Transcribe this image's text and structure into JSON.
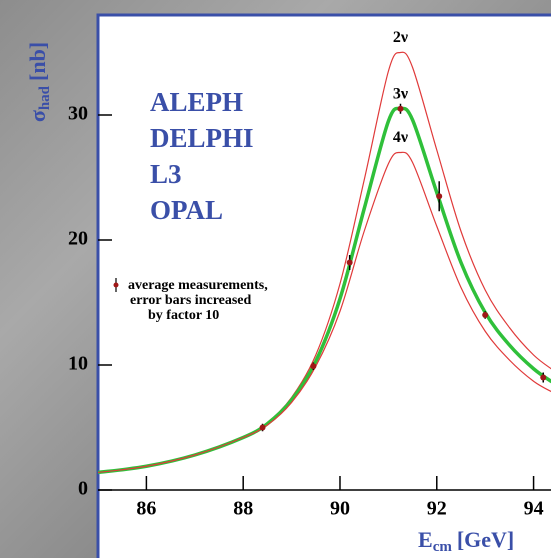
{
  "chart_data": {
    "type": "line",
    "x": [
      85,
      86,
      87,
      88,
      88.5,
      89,
      89.5,
      90,
      90.5,
      91,
      91.25,
      91.5,
      92,
      92.5,
      93,
      93.5,
      94,
      94.4
    ],
    "series": [
      {
        "name": "2ν",
        "color": "#e03a3a",
        "width": 1.2,
        "values": [
          1.4,
          1.9,
          2.8,
          4.2,
          5.4,
          7.4,
          10.8,
          16.5,
          24.8,
          33.5,
          35.0,
          33.8,
          27.2,
          20.7,
          16.0,
          13.0,
          10.8,
          9.6
        ]
      },
      {
        "name": "3ν",
        "color": "#2fc03a",
        "width": 3.5,
        "values": [
          1.4,
          1.9,
          2.8,
          4.2,
          5.3,
          7.2,
          10.3,
          15.3,
          22.5,
          29.5,
          30.5,
          29.6,
          23.8,
          18.2,
          14.2,
          11.6,
          9.7,
          8.6
        ]
      },
      {
        "name": "4ν",
        "color": "#e03a3a",
        "width": 1.2,
        "values": [
          1.4,
          1.9,
          2.8,
          4.2,
          5.2,
          7.0,
          9.9,
          14.3,
          20.7,
          26.1,
          27.0,
          26.2,
          21.1,
          16.2,
          12.7,
          10.4,
          8.7,
          7.8
        ]
      }
    ],
    "measurements": {
      "x": [
        88.4,
        89.45,
        90.2,
        91.25,
        92.05,
        93.0,
        94.2
      ],
      "values": [
        5.0,
        9.9,
        18.2,
        30.5,
        23.5,
        14.0,
        9.0
      ],
      "errors": [
        0.3,
        0.3,
        0.6,
        0.4,
        1.2,
        0.3,
        0.4
      ],
      "color": "#a01818"
    },
    "experiments": [
      "ALEPH",
      "DELPHI",
      "L3",
      "OPAL"
    ],
    "legend_text": [
      "average measurements,",
      "error bars increased",
      "by factor 10"
    ],
    "xlabel": {
      "main": "E",
      "sub": "cm",
      "unit": "[GeV]"
    },
    "ylabel": {
      "main": "σ",
      "sub": "had",
      "unit": "[nb]"
    },
    "xlim": [
      85,
      94.36
    ],
    "ylim": [
      0,
      38
    ],
    "xticks": [
      86,
      88,
      90,
      92,
      94
    ],
    "yticks": [
      0,
      10,
      20,
      30
    ]
  }
}
